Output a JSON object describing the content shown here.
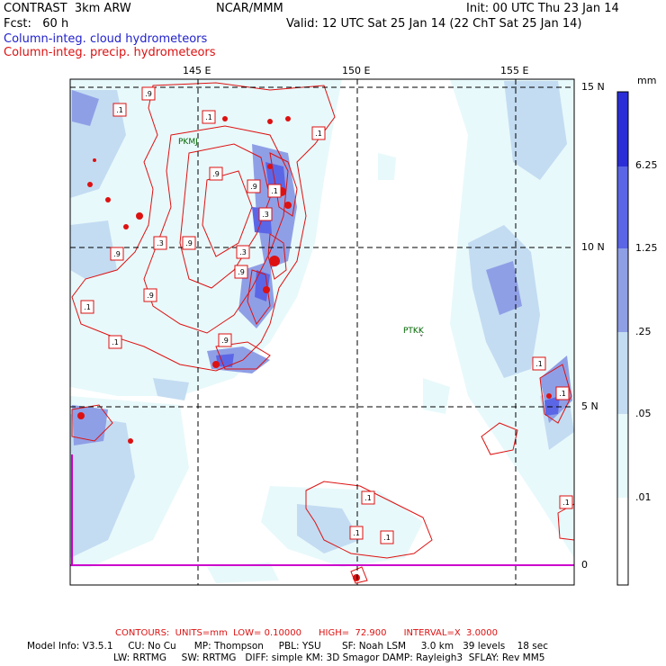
{
  "header": {
    "model": "CONTRAST  3km ARW",
    "org": "NCAR/MMM",
    "init": "Init: 00 UTC Thu 23 Jan 14",
    "fcst": "Fcst:   60 h",
    "valid": "Valid: 12 UTC Sat 25 Jan 14 (22 ChT Sat 25 Jan 14)",
    "field_cloud": "Column-integ. cloud hydrometeors",
    "field_precip": "Column-integ. precip. hydrometeors"
  },
  "colors": {
    "cloud_levels": [
      "#e8f9fb",
      "#c3dcf2",
      "#8f9fe6",
      "#5b66e6",
      "#2b2ed6"
    ],
    "precip_contour": "#dd1111",
    "grid": "#000000",
    "border_line": "#cc00cc"
  },
  "map": {
    "lon_labels": [
      "145 E",
      "150 E",
      "155 E"
    ],
    "lat_labels": [
      "15 N",
      "10 N",
      "5 N",
      "0"
    ],
    "stations": [
      "PTKK",
      "PKMJ"
    ],
    "contour_labels": [
      ".9",
      ".1",
      ".1",
      ".1",
      ".9",
      ".3",
      ".9",
      ".9",
      ".3",
      ".3",
      ".9",
      ".9",
      ".1",
      ".9",
      ".1",
      ".9",
      ".1",
      ".1",
      ".1",
      ".1",
      ".1",
      ".1",
      ".1"
    ]
  },
  "legend": {
    "unit": "mm",
    "labels": [
      "6.25",
      "1.25",
      ".25",
      ".05",
      ".01"
    ]
  },
  "footer": {
    "contours": "CONTOURS:  UNITS=mm  LOW= 0.10000      HIGH=  72.900      INTERVAL=X  3.0000",
    "line1": "Model Info: V3.5.1     CU: No Cu      MP: Thompson     PBL: YSU       SF: Noah LSM     3.0 km   39 levels    18 sec",
    "line2": "LW: RRTMG     SW: RRTMG   DIFF: simple KM: 3D Smagor DAMP: Rayleigh3  SFLAY: Rev MM5"
  }
}
